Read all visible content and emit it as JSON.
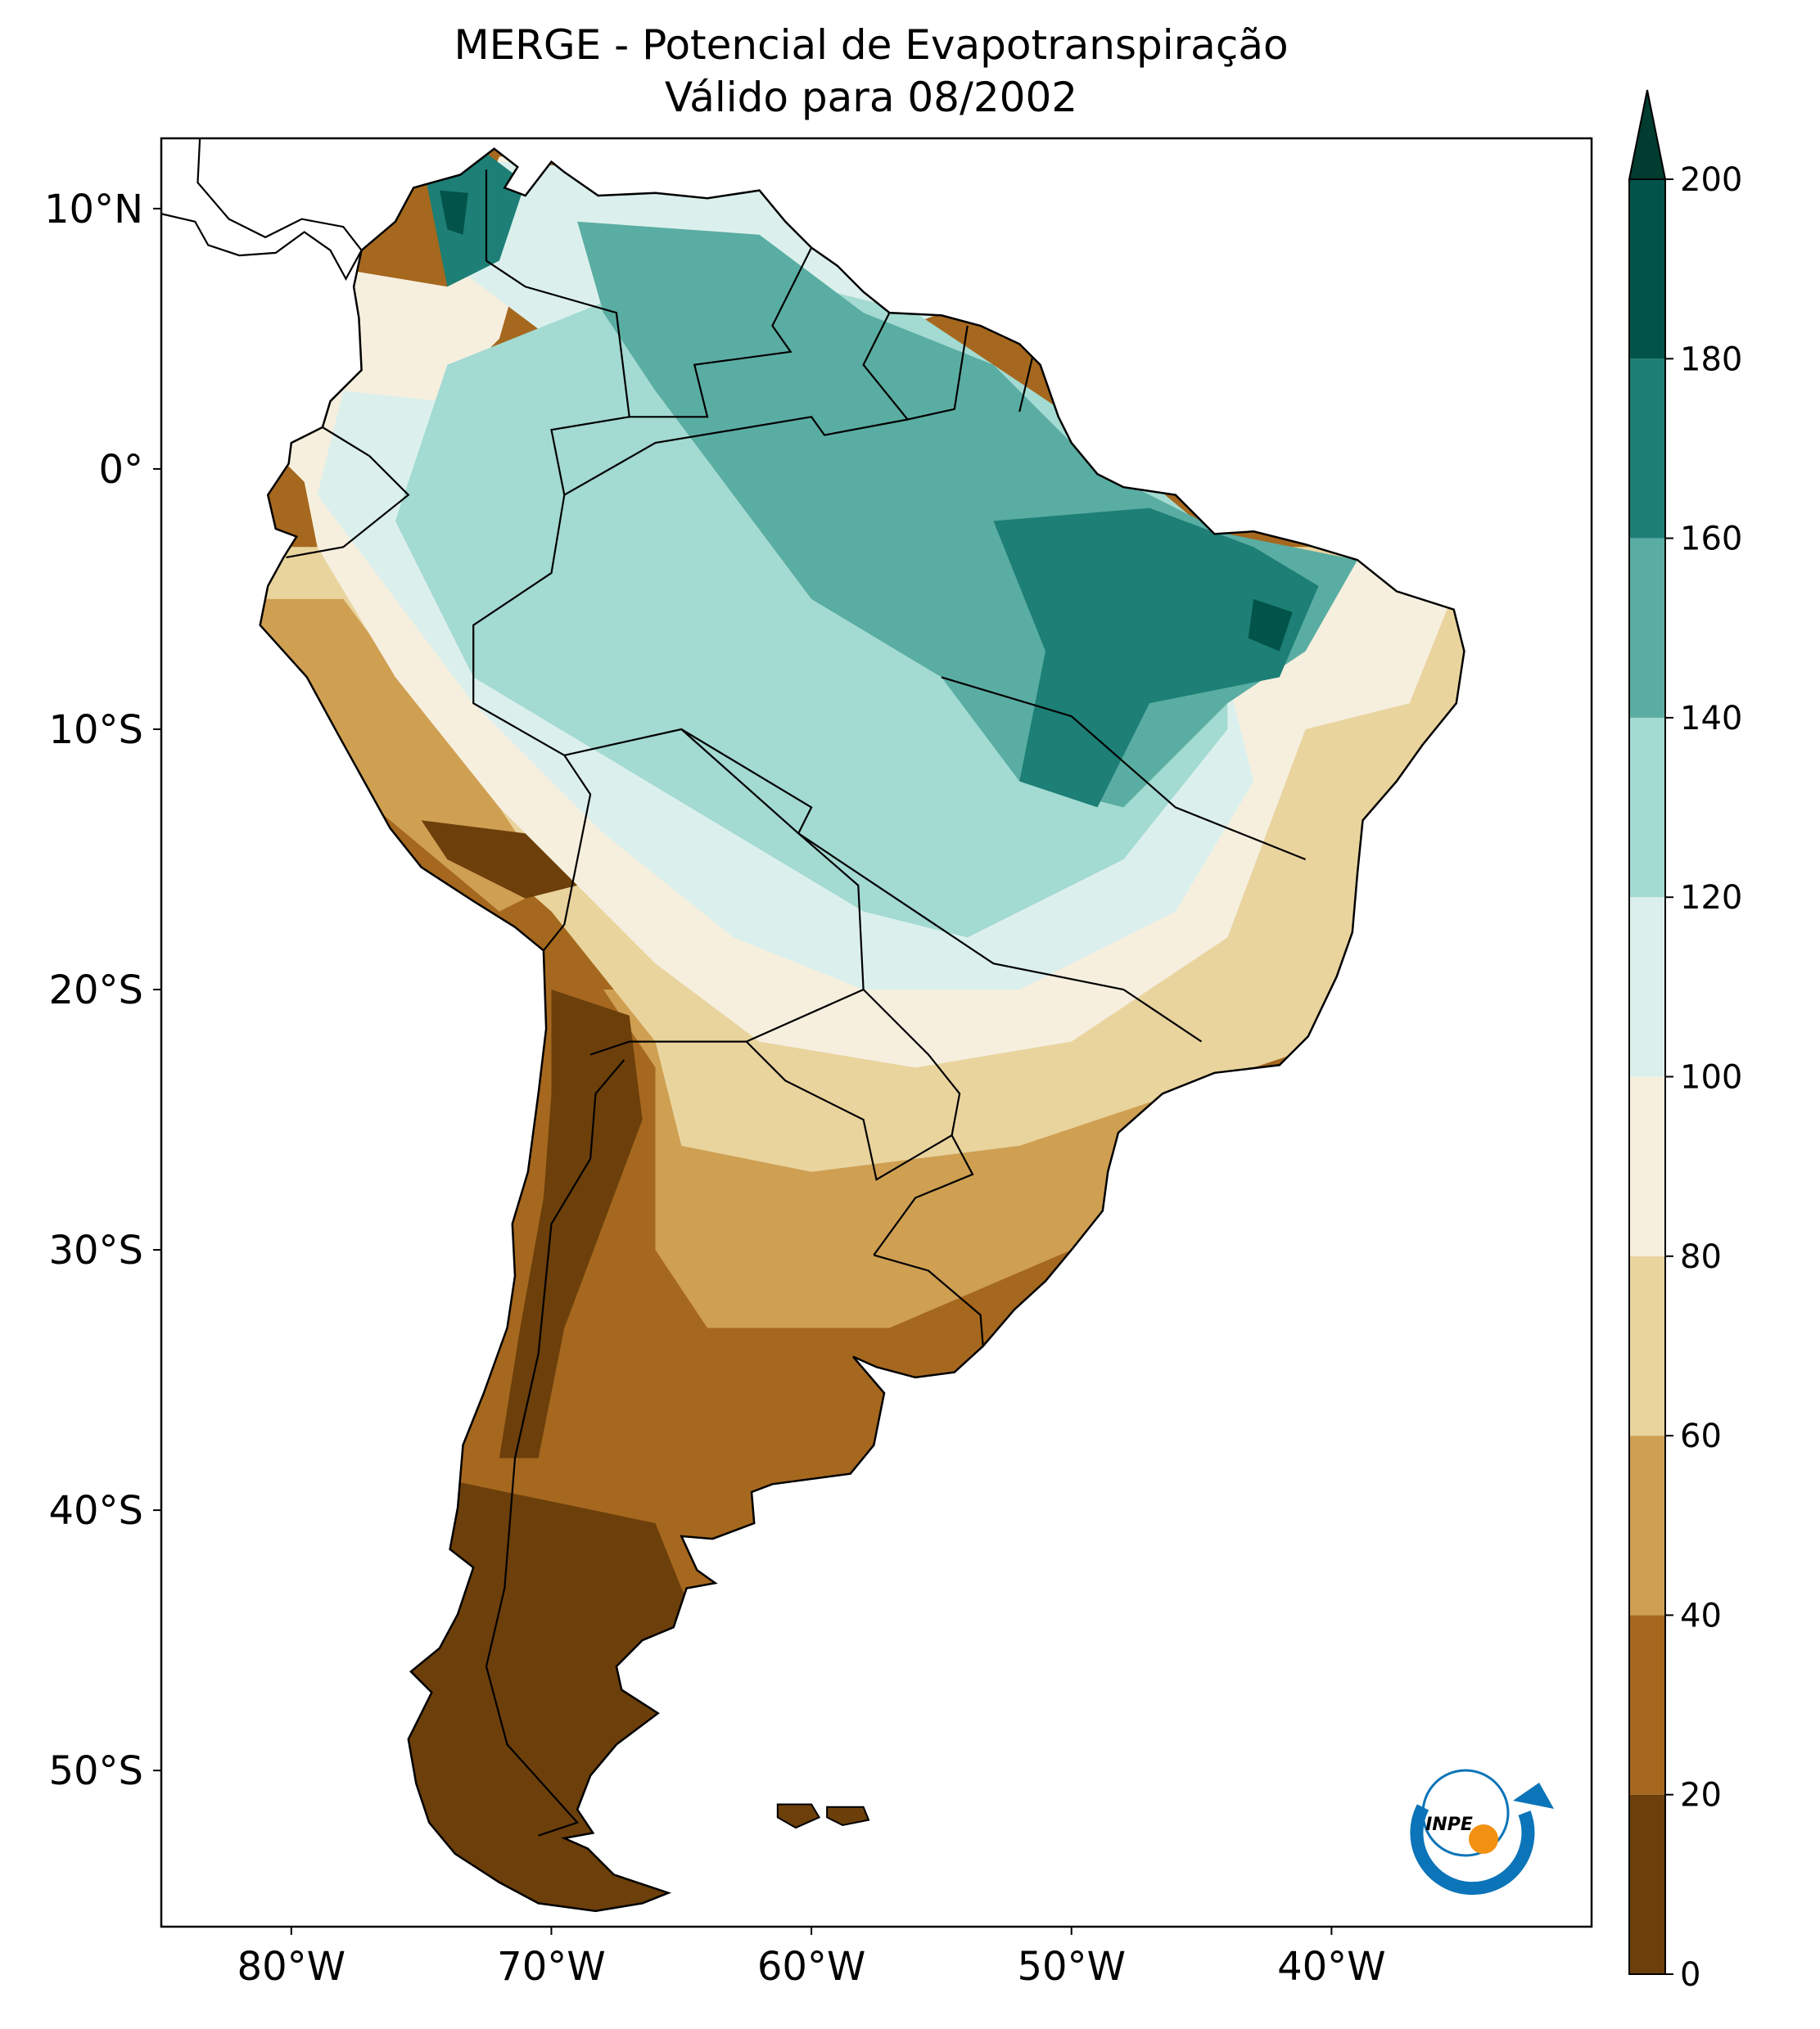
{
  "chart_data": {
    "type": "map",
    "title": "MERGE - Potencial de Evapotranspiração",
    "subtitle": "Válido para 08/2002",
    "xlim": [
      -85,
      -30
    ],
    "ylim": [
      -56,
      12.7
    ],
    "xticks": [
      {
        "value": -80,
        "label": "80°W"
      },
      {
        "value": -70,
        "label": "70°W"
      },
      {
        "value": -60,
        "label": "60°W"
      },
      {
        "value": -50,
        "label": "50°W"
      },
      {
        "value": -40,
        "label": "40°W"
      }
    ],
    "yticks": [
      {
        "value": 10,
        "label": "10°N"
      },
      {
        "value": 0,
        "label": "0°"
      },
      {
        "value": -10,
        "label": "10°S"
      },
      {
        "value": -20,
        "label": "20°S"
      },
      {
        "value": -30,
        "label": "30°S"
      },
      {
        "value": -40,
        "label": "40°S"
      },
      {
        "value": -50,
        "label": "50°S"
      }
    ],
    "colorbar": {
      "levels": [
        0,
        20,
        40,
        60,
        80,
        100,
        120,
        140,
        160,
        180,
        200
      ],
      "colors": [
        "#6c3f0b",
        "#a5681e",
        "#cf9f52",
        "#e9d49e",
        "#f6efde",
        "#dbf0ed",
        "#a3dad2",
        "#5aada2",
        "#1d7f76",
        "#02544a",
        "#003c30"
      ],
      "extend": "max"
    },
    "logo_text": "INPE"
  }
}
